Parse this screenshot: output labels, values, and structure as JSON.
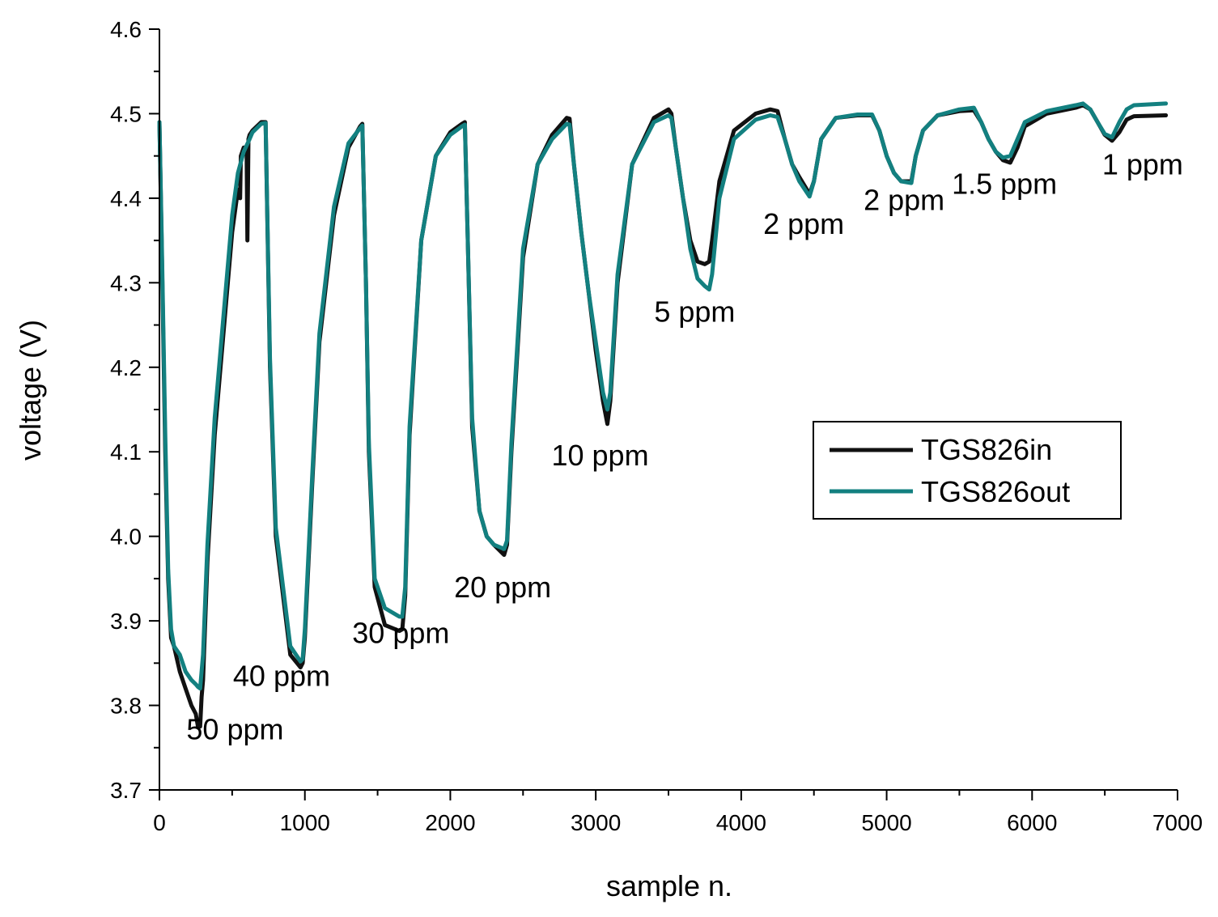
{
  "chart_data": {
    "type": "line",
    "title": "",
    "xlabel": "sample n.",
    "ylabel": "voltage (V)",
    "xlim": [
      0,
      7000
    ],
    "ylim": [
      3.7,
      4.6
    ],
    "x_ticks": [
      0,
      1000,
      2000,
      3000,
      4000,
      5000,
      6000,
      7000
    ],
    "x_tick_labels": [
      "0",
      "1000",
      "2000",
      "3000",
      "4000",
      "5000",
      "6000",
      "7000"
    ],
    "y_ticks": [
      3.7,
      3.8,
      3.9,
      4.0,
      4.1,
      4.2,
      4.3,
      4.4,
      4.5,
      4.6
    ],
    "y_tick_labels": [
      "3.7",
      "3.8",
      "3.9",
      "4.0",
      "4.1",
      "4.2",
      "4.3",
      "4.4",
      "4.5",
      "4.6"
    ],
    "grid": false,
    "legend_position": "center-right",
    "colors": {
      "TGS826in": "#111111",
      "TGS826out": "#138080"
    },
    "series": [
      {
        "name": "TGS826in",
        "x": [
          0,
          15,
          40,
          60,
          80,
          100,
          140,
          180,
          220,
          250,
          265,
          280,
          290,
          300,
          330,
          380,
          450,
          500,
          540,
          555,
          560,
          580,
          600,
          605,
          612,
          620,
          640,
          700,
          730,
          760,
          800,
          900,
          970,
          985,
          1000,
          1050,
          1100,
          1200,
          1300,
          1380,
          1395,
          1420,
          1440,
          1480,
          1550,
          1650,
          1670,
          1690,
          1720,
          1800,
          1900,
          2000,
          2080,
          2100,
          2120,
          2150,
          2200,
          2250,
          2300,
          2370,
          2390,
          2420,
          2500,
          2600,
          2700,
          2800,
          2820,
          2850,
          2900,
          2950,
          3000,
          3050,
          3080,
          3100,
          3150,
          3250,
          3400,
          3500,
          3520,
          3550,
          3600,
          3650,
          3700,
          3750,
          3780,
          3800,
          3850,
          3950,
          4100,
          4200,
          4250,
          4300,
          4350,
          4400,
          4470,
          4500,
          4550,
          4650,
          4800,
          4900,
          4950,
          5000,
          5050,
          5100,
          5170,
          5200,
          5250,
          5350,
          5500,
          5600,
          5650,
          5700,
          5750,
          5800,
          5850,
          5900,
          5950,
          6100,
          6300,
          6350,
          6400,
          6450,
          6500,
          6550,
          6600,
          6650,
          6700,
          6920
        ],
        "values": [
          4.49,
          4.35,
          4.1,
          3.95,
          3.88,
          3.87,
          3.84,
          3.82,
          3.8,
          3.79,
          3.775,
          3.775,
          3.81,
          3.83,
          3.97,
          4.12,
          4.26,
          4.36,
          4.41,
          4.4,
          4.45,
          4.46,
          4.45,
          4.35,
          4.47,
          4.475,
          4.48,
          4.49,
          4.49,
          4.2,
          4.0,
          3.86,
          3.845,
          3.85,
          3.88,
          4.06,
          4.23,
          4.38,
          4.46,
          4.485,
          4.488,
          4.3,
          4.1,
          3.94,
          3.895,
          3.888,
          3.89,
          3.93,
          4.12,
          4.35,
          4.45,
          4.478,
          4.488,
          4.49,
          4.35,
          4.13,
          4.03,
          4.0,
          3.99,
          3.978,
          3.99,
          4.1,
          4.33,
          4.44,
          4.475,
          4.495,
          4.494,
          4.44,
          4.36,
          4.29,
          4.22,
          4.16,
          4.133,
          4.16,
          4.3,
          4.44,
          4.495,
          4.505,
          4.5,
          4.46,
          4.4,
          4.35,
          4.325,
          4.322,
          4.325,
          4.35,
          4.42,
          4.48,
          4.5,
          4.505,
          4.503,
          4.47,
          4.44,
          4.425,
          4.405,
          4.42,
          4.47,
          4.495,
          4.498,
          4.498,
          4.48,
          4.45,
          4.43,
          4.42,
          4.42,
          4.45,
          4.48,
          4.498,
          4.503,
          4.504,
          4.49,
          4.47,
          4.455,
          4.445,
          4.442,
          4.46,
          4.485,
          4.5,
          4.507,
          4.51,
          4.505,
          4.49,
          4.475,
          4.468,
          4.478,
          4.493,
          4.497,
          4.498
        ]
      },
      {
        "name": "TGS826out",
        "x": [
          0,
          15,
          40,
          60,
          80,
          100,
          140,
          180,
          220,
          250,
          265,
          280,
          290,
          300,
          330,
          380,
          450,
          500,
          540,
          580,
          620,
          640,
          700,
          730,
          760,
          800,
          900,
          970,
          985,
          1000,
          1050,
          1100,
          1200,
          1300,
          1380,
          1395,
          1420,
          1440,
          1480,
          1550,
          1650,
          1670,
          1690,
          1720,
          1800,
          1900,
          2000,
          2080,
          2100,
          2120,
          2150,
          2200,
          2250,
          2300,
          2370,
          2390,
          2420,
          2500,
          2600,
          2700,
          2800,
          2820,
          2850,
          2900,
          2950,
          3000,
          3050,
          3080,
          3100,
          3150,
          3250,
          3400,
          3500,
          3520,
          3550,
          3600,
          3650,
          3700,
          3750,
          3780,
          3800,
          3850,
          3950,
          4100,
          4200,
          4250,
          4300,
          4350,
          4400,
          4470,
          4500,
          4550,
          4650,
          4800,
          4900,
          4950,
          5000,
          5050,
          5100,
          5170,
          5200,
          5250,
          5350,
          5500,
          5600,
          5650,
          5700,
          5750,
          5800,
          5850,
          5900,
          5950,
          6100,
          6300,
          6350,
          6400,
          6450,
          6500,
          6550,
          6600,
          6650,
          6700,
          6920
        ],
        "values": [
          4.49,
          4.36,
          4.12,
          3.96,
          3.89,
          3.87,
          3.86,
          3.84,
          3.83,
          3.825,
          3.822,
          3.82,
          3.84,
          3.86,
          3.99,
          4.14,
          4.28,
          4.38,
          4.43,
          4.455,
          4.47,
          4.478,
          4.488,
          4.489,
          4.21,
          4.01,
          3.87,
          3.852,
          3.855,
          3.89,
          4.07,
          4.24,
          4.39,
          4.465,
          4.483,
          4.486,
          4.3,
          4.11,
          3.95,
          3.915,
          3.905,
          3.905,
          3.94,
          4.13,
          4.35,
          4.45,
          4.475,
          4.485,
          4.487,
          4.35,
          4.14,
          4.03,
          4.0,
          3.99,
          3.985,
          3.995,
          4.11,
          4.34,
          4.44,
          4.47,
          4.488,
          4.487,
          4.44,
          4.36,
          4.29,
          4.23,
          4.17,
          4.15,
          4.17,
          4.31,
          4.44,
          4.49,
          4.498,
          4.495,
          4.46,
          4.4,
          4.34,
          4.305,
          4.296,
          4.292,
          4.31,
          4.4,
          4.47,
          4.493,
          4.498,
          4.496,
          4.47,
          4.44,
          4.42,
          4.402,
          4.42,
          4.47,
          4.495,
          4.499,
          4.499,
          4.48,
          4.45,
          4.43,
          4.42,
          4.418,
          4.45,
          4.48,
          4.498,
          4.505,
          4.507,
          4.49,
          4.47,
          4.455,
          4.448,
          4.45,
          4.47,
          4.49,
          4.503,
          4.51,
          4.512,
          4.505,
          4.49,
          4.476,
          4.472,
          4.49,
          4.505,
          4.51,
          4.512
        ]
      }
    ],
    "annotations": [
      {
        "text": "50 ppm",
        "x": 520,
        "y": 3.76
      },
      {
        "text": "40 ppm",
        "x": 840,
        "y": 3.823
      },
      {
        "text": "30 ppm",
        "x": 1660,
        "y": 3.874
      },
      {
        "text": "20 ppm",
        "x": 2360,
        "y": 3.928
      },
      {
        "text": "10 ppm",
        "x": 3030,
        "y": 4.084
      },
      {
        "text": "5 ppm",
        "x": 3680,
        "y": 4.254
      },
      {
        "text": "2 ppm",
        "x": 4430,
        "y": 4.358
      },
      {
        "text": "2 ppm",
        "x": 5120,
        "y": 4.386
      },
      {
        "text": "1.5 ppm",
        "x": 5810,
        "y": 4.405
      },
      {
        "text": "1 ppm",
        "x": 6760,
        "y": 4.428
      }
    ]
  }
}
